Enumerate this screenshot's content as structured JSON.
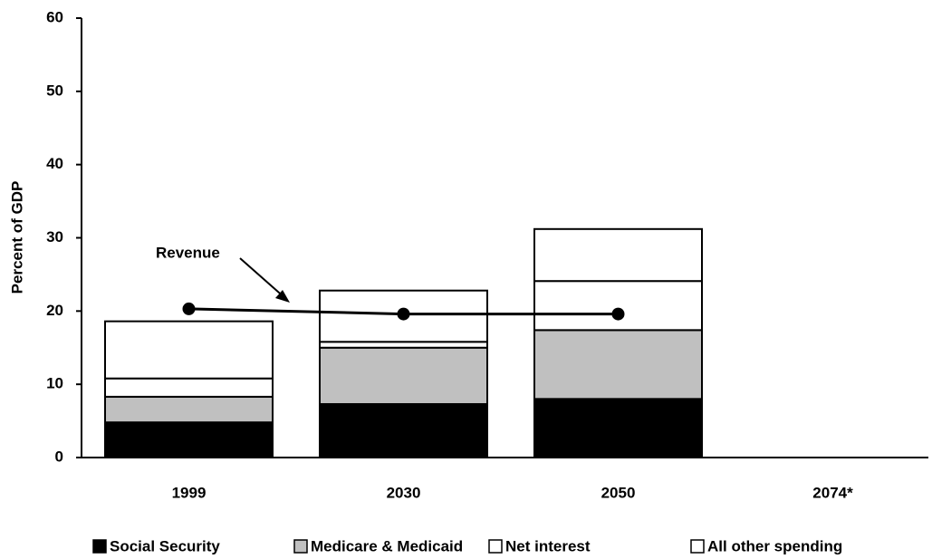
{
  "chart_data": {
    "type": "bar",
    "stacked": true,
    "y_label": "Percent of GDP",
    "categories": [
      "1999",
      "2030",
      "2050",
      "2074*"
    ],
    "series": [
      {
        "name": "Social Security",
        "color": "#000000",
        "values": [
          4.8,
          7.3,
          8.0,
          null
        ]
      },
      {
        "name": "Medicare & Medicaid",
        "color": "#c0c0c0",
        "values": [
          3.5,
          7.7,
          9.4,
          null
        ]
      },
      {
        "name": "Net interest",
        "color": "#ffffff",
        "values": [
          2.5,
          0.8,
          6.7,
          null
        ]
      },
      {
        "name": "All other spending",
        "color": "#ffffff",
        "values": [
          7.8,
          7.0,
          7.1,
          null
        ]
      }
    ],
    "line": {
      "name": "Revenue",
      "color": "#000000",
      "values": [
        20.3,
        19.6,
        19.6,
        null
      ]
    },
    "ylim": [
      0,
      60
    ],
    "yticks": [
      0,
      10,
      20,
      30,
      40,
      50,
      60
    ],
    "legend": "bottom"
  }
}
